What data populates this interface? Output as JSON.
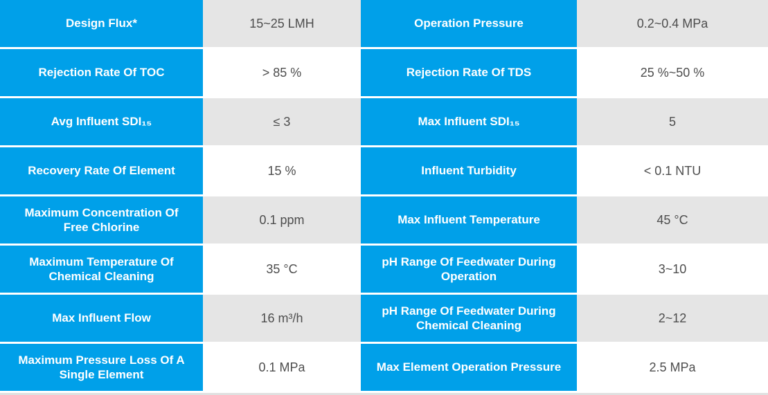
{
  "table": {
    "description": "Membrane element specification table",
    "colors": {
      "label_bg": "#00a0e9",
      "label_text": "#ffffff",
      "value_bg_odd": "#e5e5e5",
      "value_bg_even": "#ffffff",
      "value_text": "#4d4d4d",
      "row_gap": "#ffffff",
      "bottom_strip": "#e0e0e0"
    },
    "rows": [
      {
        "label1": "Design Flux*",
        "value1": "15~25 LMH",
        "label2": "Operation Pressure",
        "value2": "0.2~0.4 MPa"
      },
      {
        "label1": "Rejection Rate Of TOC",
        "value1": "> 85 %",
        "label2": "Rejection Rate Of TDS",
        "value2": "25 %~50 %"
      },
      {
        "label1": "Avg Influent SDI₁₅",
        "value1": "≤ 3",
        "label2": "Max Influent SDI₁₅",
        "value2": "5"
      },
      {
        "label1": "Recovery Rate Of Element",
        "value1": "15 %",
        "label2": "Influent Turbidity",
        "value2": "< 0.1 NTU"
      },
      {
        "label1": "Maximum Concentration Of Free Chlorine",
        "value1": "0.1 ppm",
        "label2": "Max Influent Temperature",
        "value2": "45 °C"
      },
      {
        "label1": "Maximum Temperature Of Chemical Cleaning",
        "value1": "35 °C",
        "label2": "pH Range Of Feedwater During Operation",
        "value2": "3~10"
      },
      {
        "label1": "Max Influent Flow",
        "value1": "16 m³/h",
        "label2": "pH Range Of Feedwater During Chemical Cleaning",
        "value2": "2~12"
      },
      {
        "label1": "Maximum Pressure Loss Of A Single Element",
        "value1": "0.1 MPa",
        "label2": "Max Element Operation Pressure",
        "value2": "2.5 MPa"
      }
    ]
  }
}
